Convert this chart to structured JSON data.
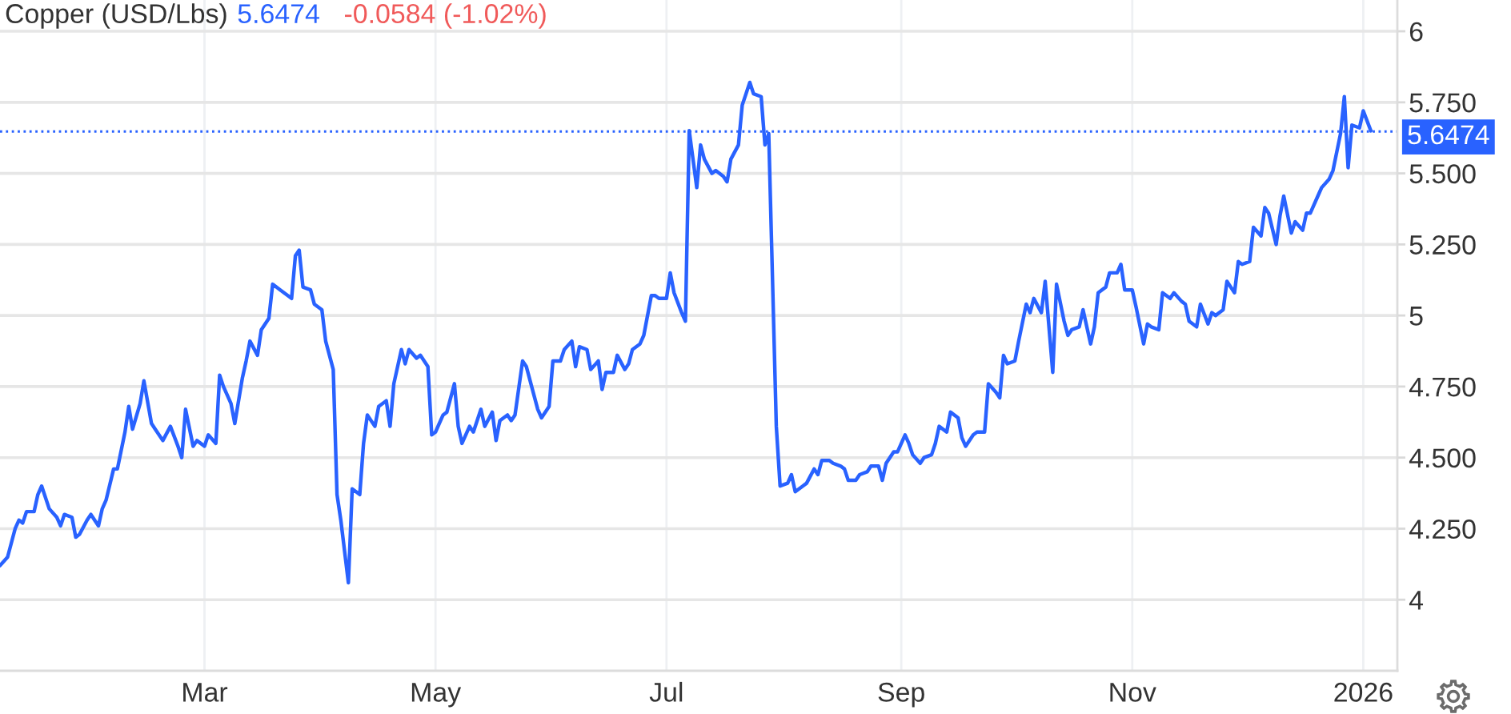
{
  "chart_data": {
    "type": "line",
    "title": "Copper (USD/Lbs)",
    "annotations": [
      "5.6474",
      "-0.0584 (-1.02%)"
    ],
    "x": [
      "2025-01-06",
      "2025-01-08",
      "2025-01-10",
      "2025-01-11",
      "2025-01-12",
      "2025-01-13",
      "2025-01-15",
      "2025-01-16",
      "2025-01-17",
      "2025-01-19",
      "2025-01-21",
      "2025-01-22",
      "2025-01-23",
      "2025-01-25",
      "2025-01-26",
      "2025-01-27",
      "2025-01-29",
      "2025-01-30",
      "2025-02-01",
      "2025-02-02",
      "2025-02-03",
      "2025-02-05",
      "2025-02-06",
      "2025-02-08",
      "2025-02-09",
      "2025-02-10",
      "2025-02-12",
      "2025-02-13",
      "2025-02-15",
      "2025-02-16",
      "2025-02-18",
      "2025-02-20",
      "2025-02-22",
      "2025-02-23",
      "2025-02-24",
      "2025-02-26",
      "2025-02-27",
      "2025-03-01",
      "2025-03-02",
      "2025-03-04",
      "2025-03-05",
      "2025-03-06",
      "2025-03-08",
      "2025-03-09",
      "2025-03-11",
      "2025-03-12",
      "2025-03-13",
      "2025-03-15",
      "2025-03-16",
      "2025-03-18",
      "2025-03-19",
      "2025-03-21",
      "2025-03-22",
      "2025-03-24",
      "2025-03-25",
      "2025-03-26",
      "2025-03-27",
      "2025-03-29",
      "2025-03-30",
      "2025-04-01",
      "2025-04-02",
      "2025-04-04",
      "2025-04-05",
      "2025-04-06",
      "2025-04-08",
      "2025-04-09",
      "2025-04-11",
      "2025-04-12",
      "2025-04-13",
      "2025-04-15",
      "2025-04-16",
      "2025-04-18",
      "2025-04-19",
      "2025-04-20",
      "2025-04-22",
      "2025-04-23",
      "2025-04-24",
      "2025-04-26",
      "2025-04-27",
      "2025-04-29",
      "2025-04-30",
      "2025-05-01",
      "2025-05-03",
      "2025-05-04",
      "2025-05-06",
      "2025-05-07",
      "2025-05-08",
      "2025-05-10",
      "2025-05-11",
      "2025-05-13",
      "2025-05-14",
      "2025-05-16",
      "2025-05-17",
      "2025-05-18",
      "2025-05-20",
      "2025-05-21",
      "2025-05-22",
      "2025-05-24",
      "2025-05-25",
      "2025-05-27",
      "2025-05-28",
      "2025-05-29",
      "2025-05-31",
      "2025-06-01",
      "2025-06-03",
      "2025-06-04",
      "2025-06-06",
      "2025-06-07",
      "2025-06-08",
      "2025-06-10",
      "2025-06-11",
      "2025-06-13",
      "2025-06-14",
      "2025-06-15",
      "2025-06-17",
      "2025-06-18",
      "2025-06-20",
      "2025-06-21",
      "2025-06-22",
      "2025-06-24",
      "2025-06-25",
      "2025-06-27",
      "2025-06-28",
      "2025-06-29",
      "2025-07-01",
      "2025-07-02",
      "2025-07-03",
      "2025-07-05",
      "2025-07-06",
      "2025-07-07",
      "2025-07-09",
      "2025-07-10",
      "2025-07-11",
      "2025-07-13",
      "2025-07-14",
      "2025-07-16",
      "2025-07-17",
      "2025-07-18",
      "2025-07-20",
      "2025-07-21",
      "2025-07-23",
      "2025-07-24",
      "2025-07-26",
      "2025-07-27",
      "2025-07-28",
      "2025-07-30",
      "2025-07-31",
      "2025-08-02",
      "2025-08-03",
      "2025-08-04",
      "2025-08-06",
      "2025-08-07",
      "2025-08-09",
      "2025-08-10",
      "2025-08-11",
      "2025-08-13",
      "2025-08-14",
      "2025-08-16",
      "2025-08-17",
      "2025-08-18",
      "2025-08-20",
      "2025-08-21",
      "2025-08-23",
      "2025-08-24",
      "2025-08-26",
      "2025-08-27",
      "2025-08-28",
      "2025-08-30",
      "2025-08-31",
      "2025-09-02",
      "2025-09-03",
      "2025-09-04",
      "2025-09-06",
      "2025-09-07",
      "2025-09-09",
      "2025-09-10",
      "2025-09-11",
      "2025-09-13",
      "2025-09-14",
      "2025-09-16",
      "2025-09-17",
      "2025-09-18",
      "2025-09-20",
      "2025-09-21",
      "2025-09-23",
      "2025-09-24",
      "2025-09-26",
      "2025-09-27",
      "2025-09-28",
      "2025-09-29",
      "2025-10-01",
      "2025-10-02",
      "2025-10-04",
      "2025-10-05",
      "2025-10-06",
      "2025-10-08",
      "2025-10-09",
      "2025-10-11",
      "2025-10-12",
      "2025-10-14",
      "2025-10-15",
      "2025-10-16",
      "2025-10-18",
      "2025-10-19",
      "2025-10-21",
      "2025-10-22",
      "2025-10-23",
      "2025-10-25",
      "2025-10-26",
      "2025-10-28",
      "2025-10-29",
      "2025-10-30",
      "2025-11-01",
      "2025-11-02",
      "2025-11-04",
      "2025-11-05",
      "2025-11-06",
      "2025-11-08",
      "2025-11-09",
      "2025-11-11",
      "2025-11-12",
      "2025-11-14",
      "2025-11-15",
      "2025-11-16",
      "2025-11-18",
      "2025-11-19",
      "2025-11-21",
      "2025-11-22",
      "2025-11-23",
      "2025-11-25",
      "2025-11-26",
      "2025-11-28",
      "2025-11-29",
      "2025-11-30",
      "2025-12-02",
      "2025-12-03",
      "2025-12-05",
      "2025-12-06",
      "2025-12-07",
      "2025-12-09",
      "2025-12-10",
      "2025-12-11",
      "2025-12-13",
      "2025-12-14",
      "2025-12-16",
      "2025-12-17",
      "2025-12-18",
      "2025-12-20",
      "2025-12-21",
      "2025-12-23",
      "2025-12-24",
      "2025-12-26",
      "2025-12-27",
      "2025-12-28",
      "2025-12-29",
      "2025-12-31",
      "2026-01-01",
      "2026-01-03"
    ],
    "series": [
      {
        "color": "#2962ff",
        "values": [
          4.12,
          4.15,
          4.25,
          4.28,
          4.27,
          4.31,
          4.31,
          4.37,
          4.4,
          4.32,
          4.29,
          4.26,
          4.3,
          4.29,
          4.22,
          4.23,
          4.28,
          4.3,
          4.26,
          4.32,
          4.35,
          4.46,
          4.46,
          4.59,
          4.68,
          4.6,
          4.69,
          4.77,
          4.62,
          4.6,
          4.56,
          4.61,
          4.54,
          4.5,
          4.67,
          4.54,
          4.56,
          4.54,
          4.58,
          4.55,
          4.79,
          4.75,
          4.69,
          4.62,
          4.78,
          4.84,
          4.91,
          4.86,
          4.95,
          4.99,
          5.11,
          5.09,
          5.08,
          5.06,
          5.21,
          5.23,
          5.1,
          5.09,
          5.04,
          5.02,
          4.91,
          4.81,
          4.37,
          4.28,
          4.06,
          4.39,
          4.37,
          4.55,
          4.65,
          4.61,
          4.68,
          4.7,
          4.61,
          4.76,
          4.88,
          4.83,
          4.88,
          4.85,
          4.86,
          4.82,
          4.58,
          4.59,
          4.65,
          4.66,
          4.76,
          4.61,
          4.55,
          4.61,
          4.59,
          4.67,
          4.61,
          4.66,
          4.56,
          4.63,
          4.65,
          4.63,
          4.65,
          4.84,
          4.82,
          4.72,
          4.67,
          4.64,
          4.68,
          4.84,
          4.84,
          4.88,
          4.91,
          4.82,
          4.89,
          4.88,
          4.81,
          4.84,
          4.74,
          4.8,
          4.8,
          4.86,
          4.81,
          4.83,
          4.88,
          4.9,
          4.93,
          5.07,
          5.07,
          5.06,
          5.06,
          5.15,
          5.08,
          5.01,
          4.98,
          5.65,
          5.45,
          5.6,
          5.55,
          5.5,
          5.51,
          5.49,
          5.47,
          5.55,
          5.6,
          5.74,
          5.82,
          5.78,
          5.77,
          5.6,
          5.64,
          4.61,
          4.4,
          4.41,
          4.44,
          4.38,
          4.4,
          4.41,
          4.46,
          4.44,
          4.49,
          4.49,
          4.48,
          4.47,
          4.46,
          4.42,
          4.42,
          4.44,
          4.45,
          4.47,
          4.47,
          4.42,
          4.48,
          4.52,
          4.52,
          4.58,
          4.55,
          4.51,
          4.48,
          4.5,
          4.51,
          4.55,
          4.61,
          4.59,
          4.66,
          4.64,
          4.57,
          4.54,
          4.58,
          4.59,
          4.59,
          4.76,
          4.73,
          4.71,
          4.86,
          4.83,
          4.84,
          4.91,
          5.04,
          5.01,
          5.06,
          5.01,
          5.12,
          4.8,
          5.11,
          4.98,
          4.93,
          4.95,
          4.96,
          5.02,
          4.9,
          4.96,
          5.08,
          5.1,
          5.15,
          5.15,
          5.18,
          5.09,
          5.09,
          5.03,
          4.9,
          4.97,
          4.96,
          4.95,
          5.08,
          5.06,
          5.08,
          5.05,
          5.04,
          4.98,
          4.96,
          5.04,
          4.97,
          5.01,
          5.0,
          5.02,
          5.12,
          5.08,
          5.19,
          5.18,
          5.19,
          5.31,
          5.28,
          5.38,
          5.36,
          5.25,
          5.35,
          5.42,
          5.29,
          5.33,
          5.3,
          5.36,
          5.36,
          5.42,
          5.45,
          5.48,
          5.51,
          5.64,
          5.77,
          5.52,
          5.67,
          5.66,
          5.72,
          5.65
        ]
      }
    ],
    "xlim": [
      "2025-01-06",
      "2026-01-10"
    ],
    "xticks": [
      {
        "value": "2025-03-01",
        "label": "Mar"
      },
      {
        "value": "2025-05-01",
        "label": "May"
      },
      {
        "value": "2025-07-01",
        "label": "Jul"
      },
      {
        "value": "2025-09-01",
        "label": "Sep"
      },
      {
        "value": "2025-11-01",
        "label": "Nov"
      },
      {
        "value": "2026-01-01",
        "label": "2026"
      }
    ],
    "ylim": [
      3.75,
      6.11
    ],
    "yticks": [
      4,
      {
        "value": 4.25,
        "label": "4.250"
      },
      {
        "value": 4.5,
        "label": "4.500"
      },
      {
        "value": 4.75,
        "label": "4.750"
      },
      5,
      {
        "value": 5.25,
        "label": "5.250"
      },
      {
        "value": 5.5,
        "label": "5.500"
      },
      {
        "value": 5.75,
        "label": "5.750"
      },
      6
    ],
    "ref_lines": [
      {
        "axis": "y",
        "value": 5.6474,
        "label": "5.6474",
        "color": "#2962ff",
        "line_style": "dotted"
      }
    ],
    "grid": true
  }
}
